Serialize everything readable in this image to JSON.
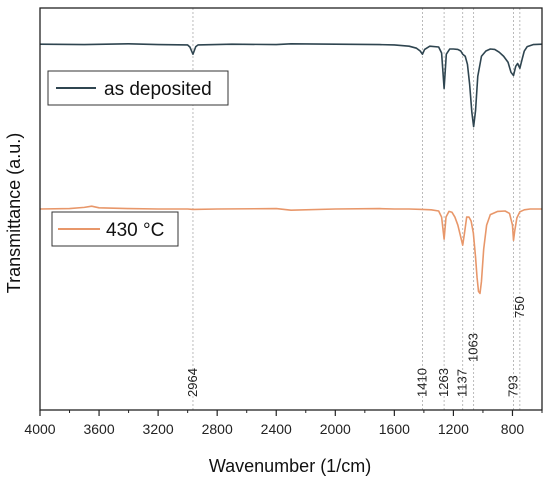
{
  "chart_data": {
    "type": "line",
    "title": "",
    "xlabel": "Wavenumber (1/cm)",
    "ylabel": "Transmittance (a.u.)",
    "xlim": [
      4000,
      600
    ],
    "x_reversed": true,
    "x_ticks": [
      4000,
      3600,
      3200,
      2800,
      2400,
      2000,
      1600,
      1200,
      800
    ],
    "y_ticks_shown": false,
    "grid": false,
    "colors": {
      "as_deposited": "#2f4550",
      "annealed_430": "#e8976a",
      "guide": "#aaaaaa"
    },
    "legend": [
      {
        "label": "as deposited",
        "series": 0
      },
      {
        "label": "430 °C",
        "series": 1
      }
    ],
    "peak_markers": [
      {
        "x": 2964,
        "label": "2964"
      },
      {
        "x": 1410,
        "label": "1410"
      },
      {
        "x": 1263,
        "label": "1263"
      },
      {
        "x": 1137,
        "label": "1137"
      },
      {
        "x": 1063,
        "label": "1063"
      },
      {
        "x": 793,
        "label": "793"
      },
      {
        "x": 750,
        "label": "750"
      }
    ],
    "series": [
      {
        "name": "as deposited",
        "x": [
          4000,
          3700,
          3400,
          3200,
          3000,
          2985,
          2964,
          2945,
          2930,
          2700,
          2400,
          2300,
          2000,
          1700,
          1600,
          1500,
          1450,
          1425,
          1410,
          1395,
          1360,
          1300,
          1280,
          1263,
          1248,
          1225,
          1200,
          1170,
          1150,
          1137,
          1120,
          1105,
          1090,
          1075,
          1063,
          1050,
          1035,
          1010,
          980,
          950,
          920,
          890,
          860,
          830,
          810,
          793,
          778,
          765,
          750,
          735,
          720,
          700,
          660,
          600
        ],
        "y": [
          0.91,
          0.909,
          0.911,
          0.909,
          0.908,
          0.903,
          0.885,
          0.904,
          0.908,
          0.91,
          0.909,
          0.911,
          0.91,
          0.909,
          0.908,
          0.905,
          0.9,
          0.893,
          0.885,
          0.897,
          0.905,
          0.903,
          0.888,
          0.8,
          0.885,
          0.898,
          0.898,
          0.897,
          0.893,
          0.885,
          0.88,
          0.86,
          0.81,
          0.74,
          0.705,
          0.745,
          0.83,
          0.88,
          0.893,
          0.898,
          0.897,
          0.89,
          0.88,
          0.865,
          0.84,
          0.832,
          0.855,
          0.862,
          0.85,
          0.872,
          0.893,
          0.904,
          0.909,
          0.91
        ]
      },
      {
        "name": "430 °C",
        "x": [
          4000,
          3800,
          3700,
          3650,
          3600,
          3400,
          3200,
          3000,
          2964,
          2800,
          2400,
          2300,
          2000,
          1700,
          1600,
          1500,
          1410,
          1350,
          1300,
          1280,
          1263,
          1250,
          1230,
          1210,
          1190,
          1170,
          1150,
          1137,
          1125,
          1110,
          1095,
          1080,
          1065,
          1050,
          1040,
          1030,
          1020,
          1010,
          995,
          975,
          950,
          900,
          850,
          820,
          800,
          793,
          785,
          770,
          750,
          720,
          680,
          600
        ],
        "y": [
          0.5,
          0.501,
          0.504,
          0.507,
          0.503,
          0.501,
          0.5,
          0.5,
          0.499,
          0.5,
          0.501,
          0.497,
          0.5,
          0.501,
          0.5,
          0.5,
          0.499,
          0.498,
          0.495,
          0.48,
          0.425,
          0.48,
          0.494,
          0.492,
          0.48,
          0.46,
          0.43,
          0.41,
          0.44,
          0.48,
          0.48,
          0.47,
          0.44,
          0.38,
          0.33,
          0.295,
          0.29,
          0.32,
          0.4,
          0.46,
          0.486,
          0.494,
          0.495,
          0.489,
          0.46,
          0.422,
          0.445,
          0.478,
          0.493,
          0.498,
          0.5,
          0.5
        ]
      }
    ]
  }
}
